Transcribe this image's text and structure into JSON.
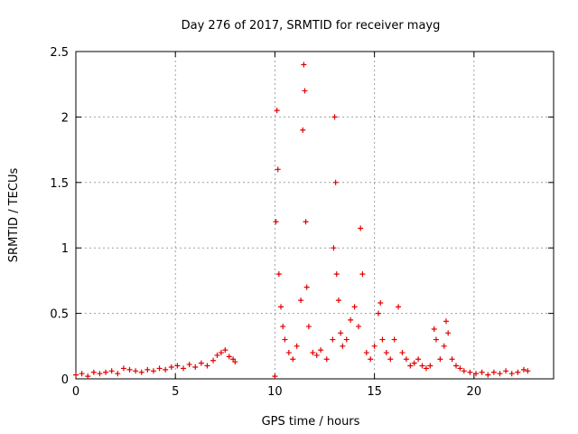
{
  "chart_data": {
    "type": "scatter",
    "title": "Day 276 of 2017, SRMTID for receiver mayg",
    "xlabel": "GPS time / hours",
    "ylabel": "SRMTID / TECUs",
    "xlim": [
      0,
      24
    ],
    "ylim": [
      0,
      2.5
    ],
    "xticks": [
      0,
      5,
      10,
      15,
      20
    ],
    "yticks": [
      0,
      0.5,
      1,
      1.5,
      2,
      2.5
    ],
    "grid": true,
    "marker": "+",
    "marker_color": "#e00000",
    "series": [
      {
        "name": "SRMTID",
        "x": [
          0.0,
          0.3,
          0.6,
          0.9,
          1.2,
          1.5,
          1.8,
          2.1,
          2.4,
          2.7,
          3.0,
          3.3,
          3.6,
          3.9,
          4.2,
          4.5,
          4.8,
          5.1,
          5.4,
          5.7,
          6.0,
          6.3,
          6.6,
          6.9,
          7.1,
          7.3,
          7.5,
          7.7,
          7.9,
          8.0,
          10.0,
          10.05,
          10.1,
          10.15,
          10.2,
          10.3,
          10.4,
          10.5,
          10.7,
          10.9,
          11.1,
          11.3,
          11.4,
          11.45,
          11.5,
          11.55,
          11.6,
          11.7,
          11.9,
          12.1,
          12.3,
          12.6,
          12.9,
          12.95,
          13.0,
          13.05,
          13.1,
          13.2,
          13.3,
          13.4,
          13.6,
          13.8,
          14.0,
          14.2,
          14.3,
          14.4,
          14.6,
          14.8,
          15.0,
          15.2,
          15.3,
          15.4,
          15.6,
          15.8,
          16.0,
          16.2,
          16.4,
          16.6,
          16.8,
          17.0,
          17.2,
          17.4,
          17.6,
          17.8,
          18.0,
          18.1,
          18.3,
          18.5,
          18.6,
          18.7,
          18.9,
          19.1,
          19.3,
          19.5,
          19.8,
          20.1,
          20.4,
          20.7,
          21.0,
          21.3,
          21.6,
          21.9,
          22.2,
          22.5,
          22.7
        ],
        "y": [
          0.03,
          0.04,
          0.02,
          0.05,
          0.04,
          0.05,
          0.06,
          0.04,
          0.08,
          0.07,
          0.06,
          0.05,
          0.07,
          0.06,
          0.08,
          0.07,
          0.09,
          0.1,
          0.08,
          0.11,
          0.09,
          0.12,
          0.1,
          0.14,
          0.18,
          0.2,
          0.22,
          0.17,
          0.15,
          0.13,
          0.02,
          1.2,
          2.05,
          1.6,
          0.8,
          0.55,
          0.4,
          0.3,
          0.2,
          0.15,
          0.25,
          0.6,
          1.9,
          2.4,
          2.2,
          1.2,
          0.7,
          0.4,
          0.2,
          0.18,
          0.22,
          0.15,
          0.3,
          1.0,
          2.0,
          1.5,
          0.8,
          0.6,
          0.35,
          0.25,
          0.3,
          0.45,
          0.55,
          0.4,
          1.15,
          0.8,
          0.2,
          0.15,
          0.25,
          0.5,
          0.58,
          0.3,
          0.2,
          0.15,
          0.3,
          0.55,
          0.2,
          0.15,
          0.1,
          0.12,
          0.15,
          0.1,
          0.08,
          0.1,
          0.38,
          0.3,
          0.15,
          0.25,
          0.44,
          0.35,
          0.15,
          0.1,
          0.08,
          0.06,
          0.05,
          0.04,
          0.05,
          0.03,
          0.05,
          0.04,
          0.06,
          0.04,
          0.05,
          0.07,
          0.06
        ]
      }
    ]
  }
}
